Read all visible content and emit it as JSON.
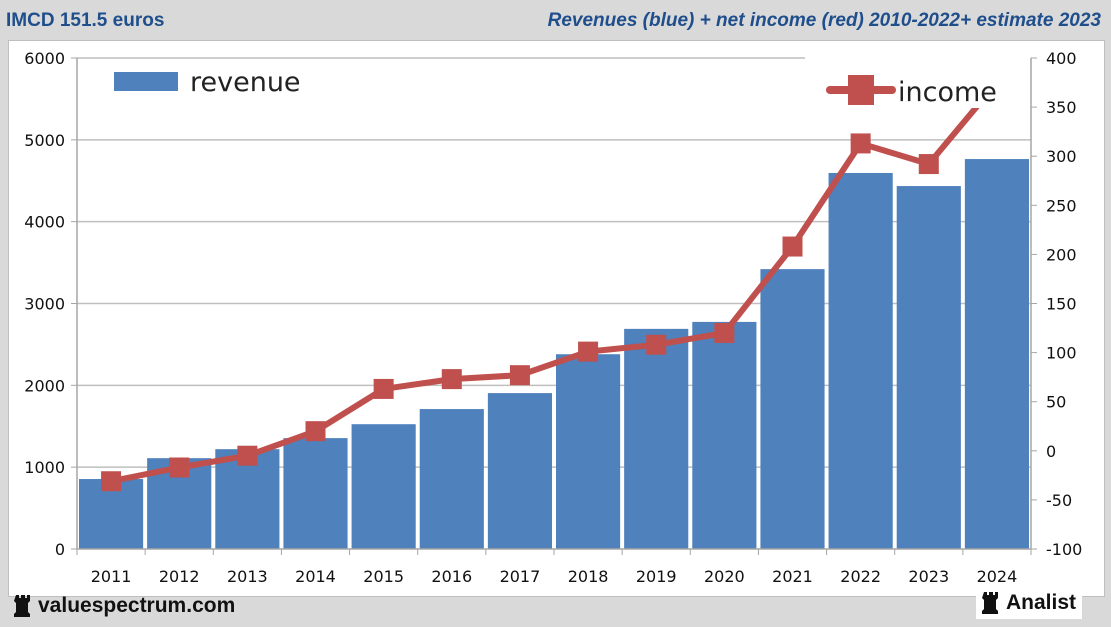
{
  "header": {
    "title_left": "IMCD 151.5 euros",
    "title_right": "Revenues (blue) + net income (red) 2010-2022+ estimate 2023"
  },
  "footer": {
    "brand_left": "valuespectrum.com",
    "brand_right": "Analist",
    "brand_icon": "rook-icon"
  },
  "colors": {
    "revenue": "#4f81bd",
    "income": "#c0504d",
    "title": "#1f4e8c",
    "background": "#d9d9d9",
    "gridline": "#bfbfbf"
  },
  "chart_data": {
    "type": "bar",
    "title": "Revenues (blue) + net income (red) 2010-2022+ estimate 2023",
    "categories": [
      "2011",
      "2012",
      "2013",
      "2014",
      "2015",
      "2016",
      "2017",
      "2018",
      "2019",
      "2020",
      "2021",
      "2022",
      "2023",
      "2024"
    ],
    "series": [
      {
        "name": "revenue",
        "type": "bar",
        "axis": "left",
        "values": [
          855,
          1110,
          1220,
          1355,
          1525,
          1710,
          1905,
          2380,
          2690,
          2775,
          3420,
          4595,
          4435,
          4765
        ]
      },
      {
        "name": "income",
        "type": "line",
        "axis": "right",
        "values": [
          -31,
          -17,
          -5,
          20,
          63,
          73,
          77,
          101,
          108,
          120,
          208,
          313,
          292,
          375
        ]
      }
    ],
    "y_left": {
      "min": 0,
      "max": 6000,
      "ticks": [
        0,
        1000,
        2000,
        3000,
        4000,
        5000,
        6000
      ]
    },
    "y_right": {
      "min": -100,
      "max": 400,
      "ticks": [
        -100,
        -50,
        0,
        50,
        100,
        150,
        200,
        250,
        300,
        350,
        400
      ]
    },
    "xlabel": "",
    "ylabel": "",
    "grid": true,
    "legend": [
      {
        "label": "revenue",
        "placement": "top-left"
      },
      {
        "label": "income",
        "placement": "top-right"
      }
    ]
  }
}
